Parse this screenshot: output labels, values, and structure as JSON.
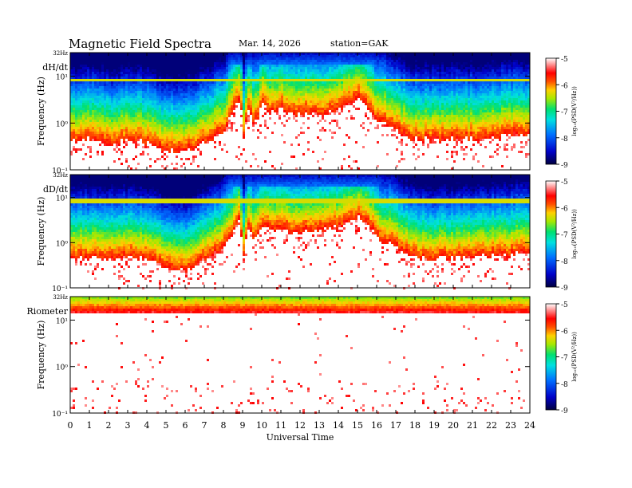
{
  "header": {
    "title": "Magnetic  Field  Spectra",
    "date": "Mar. 14, 2026",
    "station": "station=GAK"
  },
  "chart_data": [
    {
      "type": "heatmap",
      "panel_label": "dH/dt",
      "ylabel": "Frequency (Hz)",
      "top_label": "32Hz",
      "ytick_labels": [
        "10¹",
        "10⁰",
        "10⁻¹"
      ],
      "xlabel": "Universal Time",
      "xlim": [
        0,
        24
      ],
      "colorbar": {
        "label": "log₁₀(PSD(V²/Hz))",
        "range": [
          -9,
          -5
        ],
        "ticks": [
          "-5",
          "-6",
          "-7",
          "-8",
          "-9"
        ]
      },
      "baseline_log10_freq_by_hour": [
        [
          0,
          -0.35
        ],
        [
          1,
          -0.3
        ],
        [
          2,
          -0.42
        ],
        [
          3,
          -0.32
        ],
        [
          4,
          -0.38
        ],
        [
          5,
          -0.55
        ],
        [
          6,
          -0.55
        ],
        [
          7,
          -0.38
        ],
        [
          8,
          -0.12
        ],
        [
          8.5,
          0.35
        ],
        [
          8.8,
          0.6
        ],
        [
          9.0,
          -0.3
        ],
        [
          9.2,
          0.3
        ],
        [
          9.6,
          0.05
        ],
        [
          10,
          0.45
        ],
        [
          10.5,
          0.25
        ],
        [
          11,
          0.35
        ],
        [
          11.5,
          0.2
        ],
        [
          12,
          0.25
        ],
        [
          13,
          0.22
        ],
        [
          14,
          0.35
        ],
        [
          14.5,
          0.45
        ],
        [
          15,
          0.55
        ],
        [
          15.5,
          0.38
        ],
        [
          16,
          0.1
        ],
        [
          17,
          -0.1
        ],
        [
          17.5,
          -0.25
        ],
        [
          18,
          -0.3
        ],
        [
          19,
          -0.32
        ],
        [
          20,
          -0.3
        ],
        [
          21,
          -0.3
        ],
        [
          22,
          -0.25
        ],
        [
          23,
          -0.22
        ],
        [
          24,
          -0.2
        ]
      ]
    },
    {
      "type": "heatmap",
      "panel_label": "dD/dt",
      "ylabel": "Frequency (Hz)",
      "top_label": "32Hz",
      "ytick_labels": [
        "10¹",
        "10⁰",
        "10⁻¹"
      ],
      "xlabel": "Universal Time",
      "xlim": [
        0,
        24
      ],
      "colorbar": {
        "label": "log₁₀(PSD(V²/Hz))",
        "range": [
          -9,
          -5
        ],
        "ticks": [
          "-5",
          "-6",
          "-7",
          "-8",
          "-9"
        ]
      },
      "baseline_log10_freq_by_hour": [
        [
          0,
          -0.3
        ],
        [
          1,
          -0.3
        ],
        [
          2,
          -0.35
        ],
        [
          3,
          -0.28
        ],
        [
          4,
          -0.35
        ],
        [
          5,
          -0.5
        ],
        [
          6,
          -0.55
        ],
        [
          7,
          -0.35
        ],
        [
          8,
          -0.05
        ],
        [
          8.5,
          0.3
        ],
        [
          8.8,
          0.55
        ],
        [
          9.0,
          -0.25
        ],
        [
          9.2,
          0.35
        ],
        [
          9.6,
          0.1
        ],
        [
          10,
          0.4
        ],
        [
          10.5,
          0.3
        ],
        [
          11,
          0.35
        ],
        [
          11.5,
          0.25
        ],
        [
          12,
          0.3
        ],
        [
          13,
          0.3
        ],
        [
          14,
          0.4
        ],
        [
          14.5,
          0.5
        ],
        [
          15,
          0.6
        ],
        [
          15.5,
          0.45
        ],
        [
          16,
          0.15
        ],
        [
          17,
          -0.05
        ],
        [
          17.5,
          -0.2
        ],
        [
          18,
          -0.3
        ],
        [
          19,
          -0.3
        ],
        [
          20,
          -0.3
        ],
        [
          21,
          -0.28
        ],
        [
          22,
          -0.25
        ],
        [
          23,
          -0.22
        ],
        [
          24,
          -0.2
        ]
      ]
    },
    {
      "type": "heatmap",
      "panel_label": "Riometer",
      "ylabel": "Frequency (Hz)",
      "top_label": "32Hz",
      "ytick_labels": [
        "10¹",
        "10⁰",
        "10⁻¹"
      ],
      "xlabel": "Universal Time",
      "xlim": [
        0,
        24
      ],
      "colorbar": {
        "label": "log₁₀(PSD(V²/Hz))",
        "range": [
          -9,
          -5
        ],
        "ticks": [
          "-5",
          "-6",
          "-7",
          "-8",
          "-9"
        ]
      },
      "baseline_log10_freq_by_hour": [
        [
          0,
          1.2
        ],
        [
          24,
          1.2
        ]
      ]
    }
  ],
  "xaxis": {
    "ticks": [
      "0",
      "1",
      "2",
      "3",
      "4",
      "5",
      "6",
      "7",
      "8",
      "9",
      "10",
      "11",
      "12",
      "13",
      "14",
      "15",
      "16",
      "17",
      "18",
      "19",
      "20",
      "21",
      "22",
      "23",
      "24"
    ],
    "label": "Universal Time"
  }
}
